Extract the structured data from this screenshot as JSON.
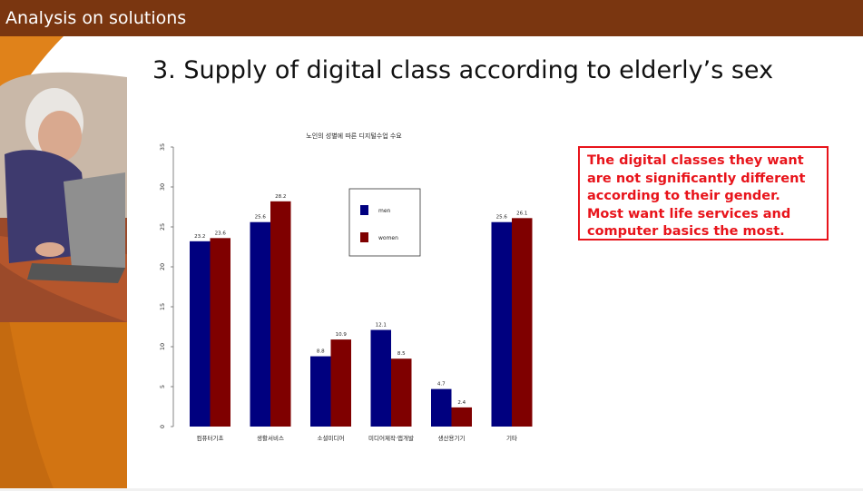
{
  "header": {
    "title": "Analysis on solutions"
  },
  "slide": {
    "title": "3. Supply of digital class according to elderly’s sex"
  },
  "callout": {
    "text": "The digital classes they want are not significantly different according to their gender. Most want life services and computer basics the most."
  },
  "colors": {
    "header_bg": "#7a3610",
    "accent_orange": "#e0821a",
    "men": "#00007f",
    "women": "#7f0000",
    "callout": "#e8141b"
  },
  "decoration": {
    "photo": "elderly-woman-using-laptop"
  },
  "chart_data": {
    "type": "bar",
    "title": "노인의 성별에 따른 디지털수업 수요",
    "categories": [
      "컴퓨터기초",
      "생활서비스",
      "소셜미디어",
      "미디어제작·앱개발",
      "생산용기기",
      "기타"
    ],
    "series": [
      {
        "name": "men",
        "values": [
          23.2,
          25.6,
          8.8,
          12.1,
          4.7,
          25.6
        ],
        "labels": [
          "23.2",
          "25.6",
          "8.8",
          "12.1",
          "4.7",
          "25.6"
        ]
      },
      {
        "name": "women",
        "values": [
          23.6,
          28.2,
          10.9,
          8.5,
          2.4,
          26.1
        ],
        "labels": [
          "23.6",
          "28.2",
          "10.9",
          "8.5",
          "2.4",
          "26.1"
        ]
      }
    ],
    "yticks": [
      0,
      5,
      10,
      15,
      20,
      25,
      30,
      35
    ],
    "ylim": [
      0,
      35
    ],
    "grid": false,
    "legend": "top-center"
  }
}
